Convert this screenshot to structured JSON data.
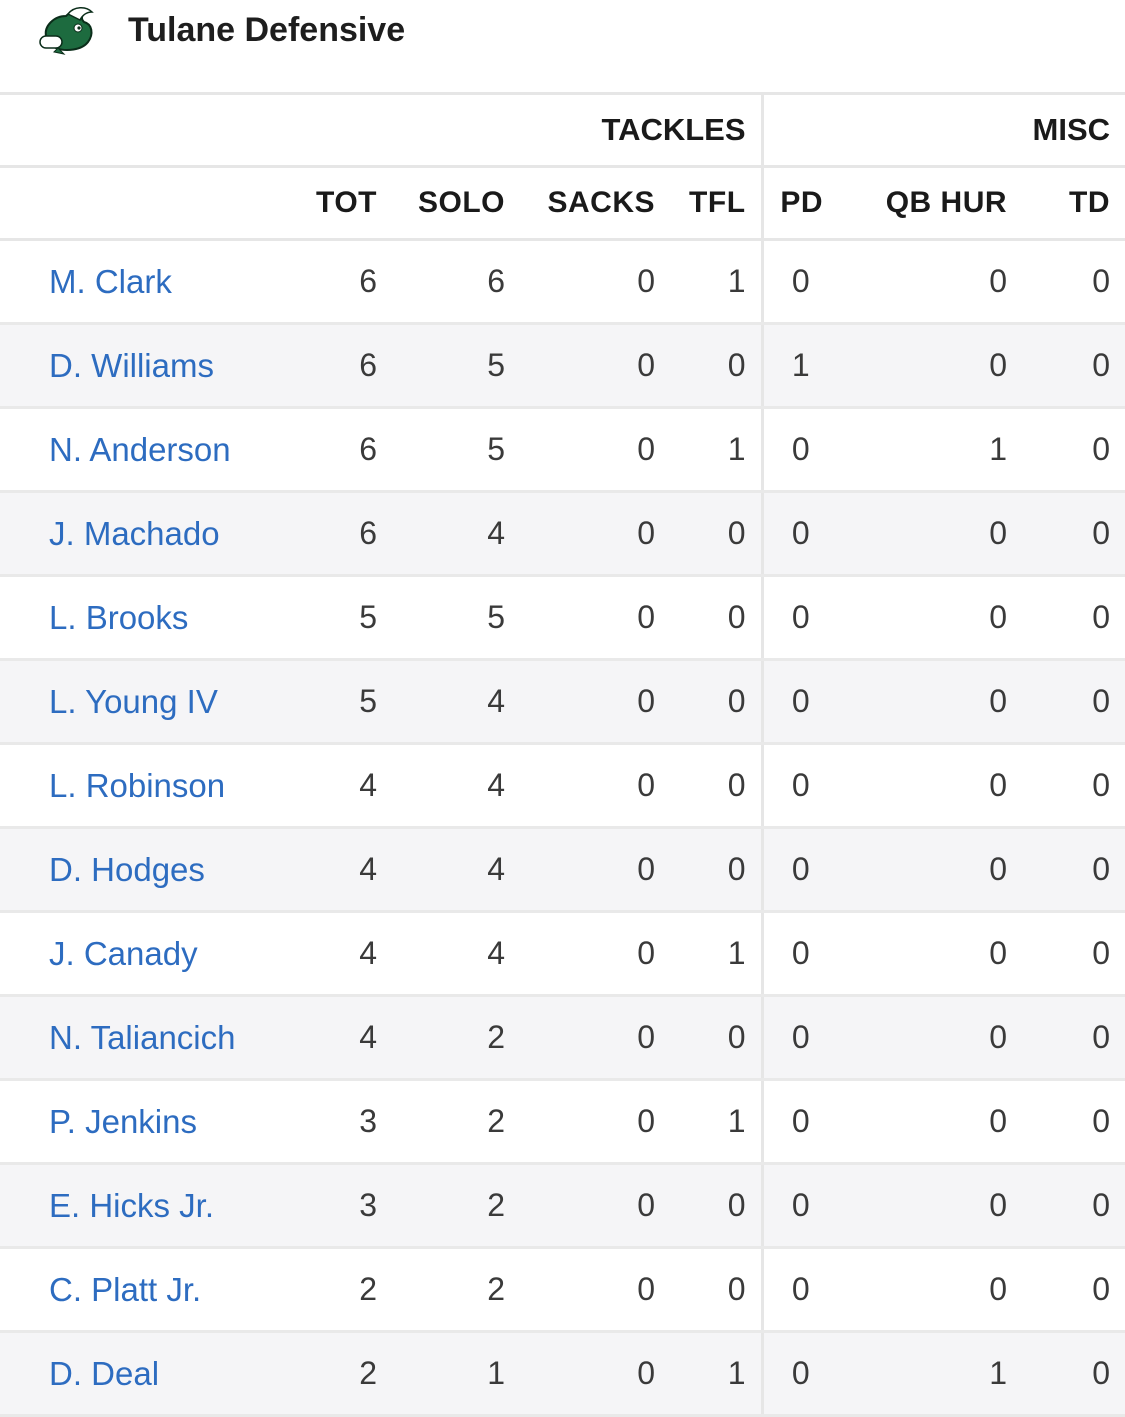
{
  "header": {
    "title": "Tulane Defensive",
    "logo_icon": "green-wave-mascot-icon",
    "accent_color": "#2d6cc0",
    "logo_color": "#1d6b3f"
  },
  "table": {
    "groups": [
      {
        "label": "TACKLES"
      },
      {
        "label": "MISC"
      }
    ],
    "columns": [
      "TOT",
      "SOLO",
      "SACKS",
      "TFL",
      "PD",
      "QB HUR",
      "TD"
    ],
    "rows": [
      {
        "name": "M. Clark",
        "values": [
          "6",
          "6",
          "0",
          "1",
          "0",
          "0",
          "0"
        ]
      },
      {
        "name": "D. Williams",
        "values": [
          "6",
          "5",
          "0",
          "0",
          "1",
          "0",
          "0"
        ]
      },
      {
        "name": "N. Anderson",
        "values": [
          "6",
          "5",
          "0",
          "1",
          "0",
          "1",
          "0"
        ]
      },
      {
        "name": "J. Machado",
        "values": [
          "6",
          "4",
          "0",
          "0",
          "0",
          "0",
          "0"
        ]
      },
      {
        "name": "L. Brooks",
        "values": [
          "5",
          "5",
          "0",
          "0",
          "0",
          "0",
          "0"
        ]
      },
      {
        "name": "L. Young IV",
        "values": [
          "5",
          "4",
          "0",
          "0",
          "0",
          "0",
          "0"
        ]
      },
      {
        "name": "L. Robinson",
        "values": [
          "4",
          "4",
          "0",
          "0",
          "0",
          "0",
          "0"
        ]
      },
      {
        "name": "D. Hodges",
        "values": [
          "4",
          "4",
          "0",
          "0",
          "0",
          "0",
          "0"
        ]
      },
      {
        "name": "J. Canady",
        "values": [
          "4",
          "4",
          "0",
          "1",
          "0",
          "0",
          "0"
        ]
      },
      {
        "name": "N. Taliancich",
        "values": [
          "4",
          "2",
          "0",
          "0",
          "0",
          "0",
          "0"
        ]
      },
      {
        "name": "P. Jenkins",
        "values": [
          "3",
          "2",
          "0",
          "1",
          "0",
          "0",
          "0"
        ]
      },
      {
        "name": "E. Hicks Jr.",
        "values": [
          "3",
          "2",
          "0",
          "0",
          "0",
          "0",
          "0"
        ]
      },
      {
        "name": "C. Platt Jr.",
        "values": [
          "2",
          "2",
          "0",
          "0",
          "0",
          "0",
          "0"
        ]
      },
      {
        "name": "D. Deal",
        "values": [
          "2",
          "1",
          "0",
          "1",
          "0",
          "1",
          "0"
        ]
      }
    ]
  }
}
